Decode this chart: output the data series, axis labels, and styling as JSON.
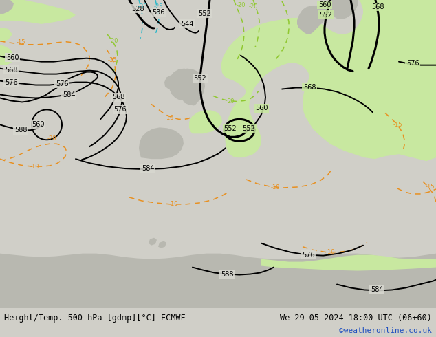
{
  "title_left": "Height/Temp. 500 hPa [gdmp][°C] ECMWF",
  "title_right": "We 29-05-2024 18:00 UTC (06+60)",
  "subtitle_right": "©weatheronline.co.uk",
  "bg_color": "#d0cfc8",
  "land_green_light": "#c8e8a0",
  "land_green_mid": "#b8e090",
  "land_gray": "#b8b8b0",
  "sea_color": "#d8d8d0",
  "height_contour_color": "#000000",
  "temp_warm_color": "#e89020",
  "temp_cold_cyan": "#30b8c8",
  "temp_green_color": "#90c830",
  "bottom_bar_color": "#c8c8c0",
  "text_color_blue": "#2050c0"
}
